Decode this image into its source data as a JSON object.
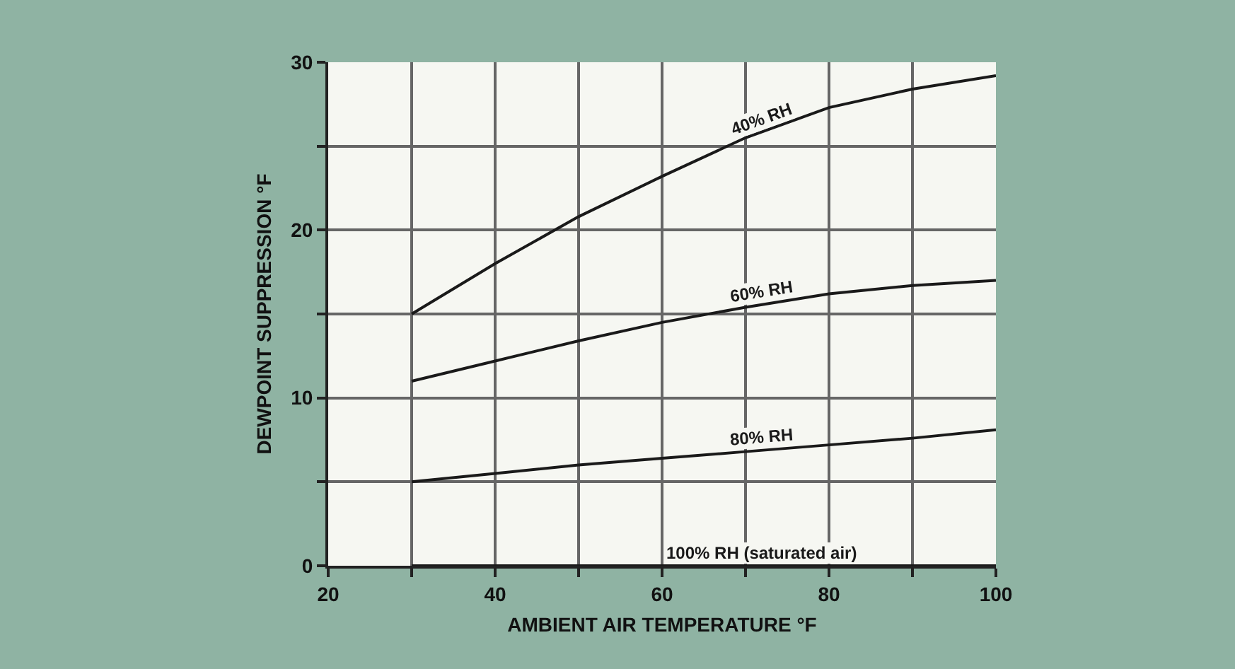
{
  "chart_data": {
    "type": "line",
    "xlabel": "AMBIENT AIR TEMPERATURE °F",
    "ylabel": "DEWPOINT SUPPRESSION °F",
    "x": [
      30,
      40,
      50,
      60,
      70,
      80,
      90,
      100
    ],
    "series": [
      {
        "name": "40% RH",
        "color": "#1a1a1a",
        "values": [
          15,
          18,
          20.8,
          23.2,
          25.5,
          27.3,
          28.4,
          29.2
        ]
      },
      {
        "name": "60% RH",
        "color": "#1a1a1a",
        "values": [
          11,
          12.2,
          13.4,
          14.5,
          15.4,
          16.2,
          16.7,
          17
        ]
      },
      {
        "name": "80% RH",
        "color": "#1a1a1a",
        "values": [
          5,
          5.5,
          6,
          6.4,
          6.8,
          7.2,
          7.6,
          8.1
        ]
      },
      {
        "name": "100% RH (saturated air)",
        "color": "#1a1a1a",
        "values": [
          0,
          0,
          0,
          0,
          0,
          0,
          0,
          0
        ]
      }
    ],
    "xlim": [
      20,
      100
    ],
    "ylim": [
      0,
      30
    ],
    "xticks": [
      20,
      {
        "value": 30,
        "label": null
      },
      40,
      {
        "value": 50,
        "label": null
      },
      60,
      {
        "value": 70,
        "label": null
      },
      80,
      {
        "value": 90,
        "label": null
      },
      100
    ],
    "yticks": [
      0,
      {
        "value": 5,
        "label": null
      },
      10,
      {
        "value": 15,
        "label": null
      },
      20,
      {
        "value": 25,
        "label": null
      },
      30
    ],
    "grid": true,
    "marker": "none",
    "line_style": "solid"
  }
}
